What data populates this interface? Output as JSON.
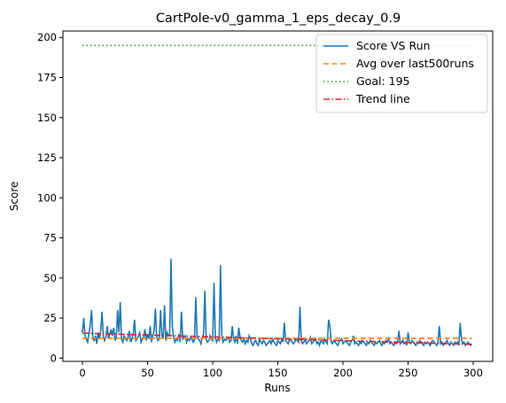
{
  "chart_data": {
    "type": "line",
    "title": "CartPole-v0_gamma_1_eps_decay_0.9",
    "xlabel": "Runs",
    "ylabel": "Score",
    "xlim": [
      -15,
      315
    ],
    "ylim": [
      -2,
      204
    ],
    "xticks": [
      0,
      50,
      100,
      150,
      200,
      250,
      300
    ],
    "yticks": [
      0,
      25,
      50,
      75,
      100,
      125,
      150,
      175,
      200
    ],
    "legend_position": "top-right",
    "series": [
      {
        "name": "Score VS Run",
        "style": "solid",
        "color": "#1f77b4",
        "x": [
          0,
          1,
          2,
          3,
          4,
          5,
          6,
          7,
          8,
          9,
          10,
          11,
          12,
          13,
          14,
          15,
          16,
          17,
          18,
          19,
          20,
          21,
          22,
          23,
          24,
          25,
          26,
          27,
          28,
          29,
          30,
          31,
          32,
          33,
          34,
          35,
          36,
          37,
          38,
          39,
          40,
          41,
          42,
          43,
          44,
          45,
          46,
          47,
          48,
          49,
          50,
          51,
          52,
          53,
          54,
          55,
          56,
          57,
          58,
          59,
          60,
          61,
          62,
          63,
          64,
          65,
          66,
          67,
          68,
          69,
          70,
          71,
          72,
          73,
          74,
          75,
          76,
          77,
          78,
          79,
          80,
          81,
          82,
          83,
          84,
          85,
          86,
          87,
          88,
          89,
          90,
          91,
          92,
          93,
          94,
          95,
          96,
          97,
          98,
          99,
          100,
          101,
          102,
          103,
          104,
          105,
          106,
          107,
          108,
          109,
          110,
          111,
          112,
          113,
          114,
          115,
          116,
          117,
          118,
          119,
          120,
          121,
          122,
          123,
          124,
          125,
          126,
          127,
          128,
          129,
          130,
          131,
          132,
          133,
          134,
          135,
          136,
          137,
          138,
          139,
          140,
          141,
          142,
          143,
          144,
          145,
          146,
          147,
          148,
          149,
          150,
          151,
          152,
          153,
          154,
          155,
          156,
          157,
          158,
          159,
          160,
          161,
          162,
          163,
          164,
          165,
          166,
          167,
          168,
          169,
          170,
          171,
          172,
          173,
          174,
          175,
          176,
          177,
          178,
          179,
          180,
          181,
          182,
          183,
          184,
          185,
          186,
          187,
          188,
          189,
          190,
          191,
          192,
          193,
          194,
          195,
          196,
          197,
          198,
          199,
          200,
          201,
          202,
          203,
          204,
          205,
          206,
          207,
          208,
          209,
          210,
          211,
          212,
          213,
          214,
          215,
          216,
          217,
          218,
          219,
          220,
          221,
          222,
          223,
          224,
          225,
          226,
          227,
          228,
          229,
          230,
          231,
          232,
          233,
          234,
          235,
          236,
          237,
          238,
          239,
          240,
          241,
          242,
          243,
          244,
          245,
          246,
          247,
          248,
          249,
          250,
          251,
          252,
          253,
          254,
          255,
          256,
          257,
          258,
          259,
          260,
          261,
          262,
          263,
          264,
          265,
          266,
          267,
          268,
          269,
          270,
          271,
          272,
          273,
          274,
          275,
          276,
          277,
          278,
          279,
          280,
          281,
          282,
          283,
          284,
          285,
          286,
          287,
          288,
          289,
          290,
          291,
          292,
          293,
          294,
          295,
          296,
          297,
          298,
          299
        ],
        "y": [
          16,
          25,
          14,
          12,
          10,
          15,
          21,
          30,
          12,
          11,
          14,
          9,
          16,
          12,
          17,
          29,
          14,
          11,
          13,
          20,
          12,
          15,
          18,
          14,
          19,
          11,
          13,
          30,
          16,
          35,
          12,
          10,
          14,
          12,
          11,
          13,
          17,
          10,
          12,
          15,
          24,
          11,
          12,
          14,
          16,
          10,
          12,
          13,
          18,
          11,
          15,
          12,
          20,
          10,
          14,
          17,
          31,
          13,
          11,
          12,
          30,
          14,
          12,
          33,
          11,
          16,
          14,
          15,
          62,
          20,
          13,
          10,
          12,
          11,
          15,
          10,
          29,
          12,
          13,
          14,
          10,
          12,
          11,
          13,
          12,
          10,
          11,
          38,
          14,
          12,
          11,
          9,
          13,
          15,
          42,
          12,
          10,
          11,
          14,
          12,
          11,
          47,
          13,
          10,
          12,
          11,
          58,
          14,
          10,
          12,
          11,
          12,
          13,
          10,
          11,
          20,
          12,
          10,
          14,
          9,
          19,
          13,
          11,
          10,
          12,
          9,
          11,
          10,
          14,
          12,
          9,
          8,
          10,
          11,
          9,
          8,
          12,
          10,
          9,
          11,
          10,
          8,
          9,
          10,
          11,
          9,
          12,
          10,
          9,
          8,
          11,
          10,
          9,
          12,
          10,
          22,
          11,
          10,
          9,
          12,
          11,
          10,
          9,
          10,
          12,
          11,
          10,
          32,
          11,
          9,
          10,
          12,
          9,
          10,
          11,
          13,
          9,
          10,
          11,
          12,
          9,
          10,
          8,
          11,
          10,
          9,
          12,
          10,
          9,
          24,
          20,
          10,
          9,
          11,
          10,
          9,
          8,
          10,
          11,
          12,
          9,
          10,
          11,
          10,
          9,
          8,
          10,
          11,
          14,
          9,
          10,
          9,
          8,
          10,
          9,
          11,
          10,
          9,
          8,
          10,
          9,
          11,
          10,
          9,
          8,
          10,
          9,
          10,
          11,
          9,
          8,
          10,
          9,
          11,
          10,
          12,
          9,
          10,
          9,
          8,
          10,
          9,
          10,
          17,
          9,
          10,
          11,
          9,
          10,
          8,
          16,
          10,
          9,
          11,
          10,
          9,
          8,
          10,
          9,
          11,
          10,
          9,
          8,
          10,
          9,
          10,
          9,
          8,
          10,
          11,
          10,
          9,
          8,
          10,
          20,
          9,
          10,
          8,
          9,
          10,
          11,
          9,
          8,
          10,
          9,
          8,
          10,
          9,
          10,
          8,
          22,
          12,
          9,
          10,
          8,
          9,
          10,
          9,
          8,
          9
        ]
      },
      {
        "name": "Avg over last500runs",
        "style": "dashed",
        "color": "#ff7f0e",
        "x": [
          0,
          299
        ],
        "y": [
          12.4,
          12.4
        ]
      },
      {
        "name": "Goal: 195",
        "style": "dotted",
        "color": "#2ca02c",
        "x": [
          0,
          299
        ],
        "y": [
          195,
          195
        ]
      },
      {
        "name": "Trend line",
        "style": "dashdot",
        "color": "#d62728",
        "x": [
          0,
          299
        ],
        "y": [
          15.6,
          8.6
        ]
      }
    ]
  }
}
